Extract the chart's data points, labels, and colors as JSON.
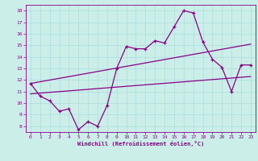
{
  "xlabel": "Windchill (Refroidissement éolien,°C)",
  "bg_color": "#cceee8",
  "line_color": "#880088",
  "xlim": [
    -0.5,
    23.5
  ],
  "ylim": [
    7.5,
    18.5
  ],
  "xticks": [
    0,
    1,
    2,
    3,
    4,
    5,
    6,
    7,
    8,
    9,
    10,
    11,
    12,
    13,
    14,
    15,
    16,
    17,
    18,
    19,
    20,
    21,
    22,
    23
  ],
  "yticks": [
    8,
    9,
    10,
    11,
    12,
    13,
    14,
    15,
    16,
    17,
    18
  ],
  "data_x": [
    0,
    1,
    2,
    3,
    4,
    5,
    6,
    7,
    8,
    9,
    10,
    11,
    12,
    13,
    14,
    15,
    16,
    17,
    18,
    19,
    20,
    21,
    22,
    23
  ],
  "data_y": [
    11.7,
    10.6,
    10.2,
    9.3,
    9.5,
    7.7,
    8.4,
    8.0,
    9.8,
    13.0,
    14.9,
    14.7,
    14.7,
    15.4,
    15.2,
    16.6,
    18.0,
    17.8,
    15.3,
    13.8,
    13.1,
    11.0,
    13.3,
    13.3
  ],
  "trend1_x": [
    0,
    23
  ],
  "trend1_y": [
    10.8,
    12.3
  ],
  "trend2_x": [
    0,
    23
  ],
  "trend2_y": [
    11.7,
    15.1
  ],
  "grid_color": "#aadddd",
  "marker": "+"
}
